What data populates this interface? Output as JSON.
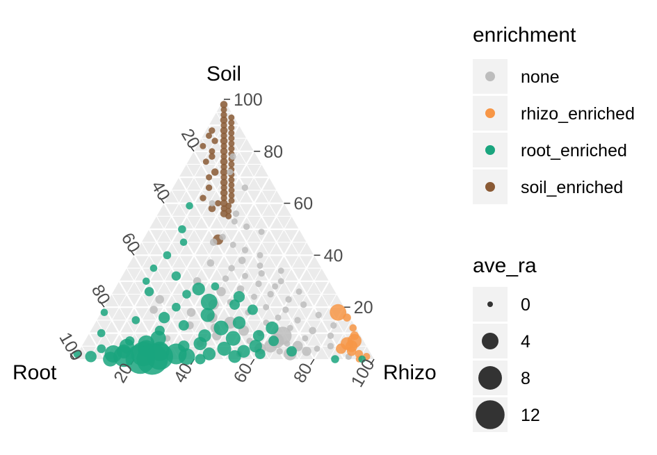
{
  "chart_data": {
    "type": "scatter",
    "subtype": "ternary",
    "axes": {
      "top": "Soil",
      "left": "Root",
      "right": "Rhizo"
    },
    "ticks": [
      "20",
      "40",
      "60",
      "80",
      "100"
    ],
    "right_ticks": [
      "20",
      "40",
      "60",
      "80",
      "100"
    ],
    "grid": true,
    "legend_position": "right",
    "legends": {
      "color": {
        "title": "enrichment",
        "entries": [
          {
            "label": "none",
            "color": "#bdbdbd"
          },
          {
            "label": "rhizo_enriched",
            "color": "#f79646"
          },
          {
            "label": "root_enriched",
            "color": "#1aa57e"
          },
          {
            "label": "soil_enriched",
            "color": "#8a5a35"
          }
        ]
      },
      "size": {
        "title": "ave_ra",
        "entries": [
          {
            "label": "0",
            "value": 0
          },
          {
            "label": "4",
            "value": 4
          },
          {
            "label": "8",
            "value": 8
          },
          {
            "label": "12",
            "value": 12
          }
        ]
      }
    },
    "series": [
      {
        "group": "soil_enriched",
        "color": "#8a5a35",
        "points": [
          [
            98,
            1,
            1,
            0.5
          ],
          [
            96,
            2,
            2,
            0.3
          ],
          [
            94,
            3,
            3,
            0.4
          ],
          [
            93,
            1,
            6,
            0.3
          ],
          [
            92,
            4,
            4,
            0.5
          ],
          [
            91,
            2,
            7,
            0.3
          ],
          [
            90,
            5,
            5,
            0.4
          ],
          [
            89,
            3,
            8,
            0.3
          ],
          [
            88,
            6,
            6,
            0.5
          ],
          [
            87,
            4,
            9,
            0.3
          ],
          [
            86,
            7,
            7,
            0.4
          ],
          [
            85,
            5,
            10,
            0.3
          ],
          [
            84,
            8,
            8,
            0.5
          ],
          [
            83,
            6,
            11,
            0.3
          ],
          [
            82,
            9,
            9,
            0.4
          ],
          [
            81,
            7,
            12,
            0.3
          ],
          [
            80,
            10,
            10,
            0.5
          ],
          [
            79,
            8,
            13,
            0.3
          ],
          [
            78,
            11,
            11,
            0.4
          ],
          [
            77,
            9,
            14,
            0.3
          ],
          [
            76,
            12,
            12,
            0.5
          ],
          [
            75,
            10,
            15,
            0.3
          ],
          [
            74,
            13,
            13,
            0.4
          ],
          [
            73,
            11,
            16,
            0.3
          ],
          [
            72,
            14,
            14,
            0.5
          ],
          [
            71,
            12,
            17,
            0.3
          ],
          [
            70,
            15,
            15,
            0.4
          ],
          [
            69,
            13,
            18,
            0.3
          ],
          [
            68,
            16,
            16,
            0.5
          ],
          [
            67,
            14,
            19,
            0.3
          ],
          [
            66,
            17,
            17,
            0.4
          ],
          [
            65,
            15,
            20,
            0.3
          ],
          [
            64,
            18,
            18,
            0.5
          ],
          [
            63,
            16,
            21,
            0.3
          ],
          [
            62,
            19,
            19,
            0.4
          ],
          [
            61,
            17,
            22,
            0.3
          ],
          [
            60,
            20,
            20,
            0.5
          ],
          [
            59,
            19,
            22,
            0.3
          ],
          [
            58,
            21,
            21,
            0.4
          ],
          [
            57,
            20,
            23,
            0.3
          ],
          [
            56,
            22,
            22,
            0.5
          ],
          [
            55,
            21,
            24,
            0.3
          ],
          [
            88,
            10,
            2,
            0.4
          ],
          [
            86,
            12,
            2,
            0.3
          ],
          [
            84,
            11,
            5,
            0.4
          ],
          [
            80,
            14,
            6,
            0.3
          ],
          [
            78,
            15,
            7,
            0.4
          ],
          [
            76,
            18,
            6,
            0.3
          ],
          [
            72,
            17,
            11,
            0.5
          ],
          [
            70,
            20,
            10,
            0.3
          ],
          [
            62,
            26,
            12,
            0.4
          ],
          [
            60,
            22,
            18,
            0.3
          ],
          [
            58,
            25,
            17,
            0.5
          ],
          [
            46,
            29,
            25,
            1.0
          ],
          [
            82,
            16,
            2,
            0.3
          ],
          [
            66,
            22,
            12,
            0.4
          ]
        ]
      },
      {
        "group": "none",
        "color": "#bdbdbd",
        "points": [
          [
            78,
            8,
            14,
            0.4
          ],
          [
            72,
            12,
            16,
            0.3
          ],
          [
            66,
            10,
            24,
            0.4
          ],
          [
            60,
            24,
            16,
            0.3
          ],
          [
            56,
            18,
            26,
            0.4
          ],
          [
            53,
            20,
            27,
            0.3
          ],
          [
            51,
            17,
            32,
            0.4
          ],
          [
            49,
            13,
            38,
            0.3
          ],
          [
            47,
            27,
            26,
            0.4
          ],
          [
            45,
            31,
            24,
            0.5
          ],
          [
            44,
            25,
            31,
            0.3
          ],
          [
            42,
            22,
            36,
            0.4
          ],
          [
            40,
            18,
            42,
            0.3
          ],
          [
            38,
            25,
            37,
            0.5
          ],
          [
            36,
            20,
            44,
            0.3
          ],
          [
            35,
            30,
            35,
            0.4
          ],
          [
            34,
            14,
            52,
            0.3
          ],
          [
            33,
            21,
            46,
            0.4
          ],
          [
            32,
            27,
            41,
            0.3
          ],
          [
            31,
            34,
            35,
            0.4
          ],
          [
            30,
            16,
            54,
            0.3
          ],
          [
            29,
            24,
            47,
            0.4
          ],
          [
            28,
            19,
            53,
            0.3
          ],
          [
            27,
            31,
            42,
            0.5
          ],
          [
            26,
            12,
            62,
            0.3
          ],
          [
            25,
            22,
            53,
            0.4
          ],
          [
            24,
            28,
            48,
            0.3
          ],
          [
            23,
            17,
            60,
            0.4
          ],
          [
            22,
            37,
            41,
            0.3
          ],
          [
            21,
            13,
            66,
            0.4
          ],
          [
            20,
            26,
            54,
            0.3
          ],
          [
            19,
            20,
            61,
            0.4
          ],
          [
            18,
            33,
            49,
            0.3
          ],
          [
            17,
            10,
            73,
            0.4
          ],
          [
            16,
            24,
            60,
            0.3
          ],
          [
            15,
            18,
            67,
            0.4
          ],
          [
            14,
            29,
            57,
            0.3
          ],
          [
            13,
            7,
            80,
            0.4
          ],
          [
            12,
            22,
            66,
            0.3
          ],
          [
            11,
            15,
            74,
            0.5
          ],
          [
            10,
            33,
            57,
            0.3
          ],
          [
            9,
            10,
            81,
            0.4
          ],
          [
            8,
            19,
            73,
            0.3
          ],
          [
            7,
            38,
            55,
            0.4
          ],
          [
            6,
            26,
            68,
            0.3
          ],
          [
            5,
            12,
            83,
            0.4
          ],
          [
            4,
            17,
            79,
            0.3
          ],
          [
            3,
            30,
            67,
            0.4
          ],
          [
            2,
            44,
            54,
            0.3
          ],
          [
            1,
            8,
            91,
            0.4
          ],
          [
            9,
            26,
            65,
            3.0
          ],
          [
            7,
            29,
            64,
            2.0
          ],
          [
            5,
            32,
            63,
            1.5
          ],
          [
            5,
            23,
            72,
            1.0
          ],
          [
            4,
            36,
            60,
            1.2
          ],
          [
            3,
            21,
            76,
            0.8
          ],
          [
            2,
            27,
            71,
            1.5
          ],
          [
            11,
            38,
            51,
            1.0
          ],
          [
            12,
            47,
            41,
            0.8
          ],
          [
            14,
            41,
            45,
            1.3
          ],
          [
            16,
            46,
            38,
            1.0
          ],
          [
            18,
            52,
            30,
            0.7
          ],
          [
            21,
            43,
            36,
            1.0
          ],
          [
            13,
            55,
            32,
            0.6
          ],
          [
            9,
            48,
            43,
            0.8
          ],
          [
            23,
            60,
            17,
            0.7
          ],
          [
            19,
            64,
            17,
            0.6
          ],
          [
            26,
            38,
            36,
            0.8
          ],
          [
            6,
            55,
            39,
            0.5
          ],
          [
            3,
            72,
            25,
            0.6
          ],
          [
            8,
            65,
            27,
            0.4
          ],
          [
            30,
            44,
            26,
            0.6
          ],
          [
            37,
            36,
            27,
            0.5
          ]
        ]
      },
      {
        "group": "rhizo_enriched",
        "color": "#f79646",
        "points": [
          [
            18,
            3,
            79,
            2.5
          ],
          [
            16,
            1,
            83,
            0.6
          ],
          [
            12,
            1,
            87,
            0.5
          ],
          [
            7,
            3,
            90,
            1.8
          ],
          [
            6,
            6,
            88,
            1.5
          ],
          [
            5,
            5,
            90,
            1.3
          ],
          [
            4,
            9,
            87,
            1.0
          ],
          [
            3,
            6,
            91,
            0.8
          ],
          [
            2,
            4,
            94,
            0.6
          ],
          [
            1,
            2,
            97,
            0.5
          ],
          [
            0,
            5,
            95,
            0.4
          ],
          [
            9,
            2,
            89,
            0.7
          ]
        ]
      },
      {
        "group": "root_enriched",
        "color": "#1aa57e",
        "points": [
          [
            59,
            32,
            9,
            0.5
          ],
          [
            50,
            39,
            11,
            0.6
          ],
          [
            45,
            41,
            14,
            0.5
          ],
          [
            40,
            49,
            11,
            0.6
          ],
          [
            35,
            56,
            9,
            0.5
          ],
          [
            32,
            50,
            18,
            0.8
          ],
          [
            30,
            61,
            9,
            0.5
          ],
          [
            28,
            39,
            33,
            0.6
          ],
          [
            27,
            45,
            28,
            1.5
          ],
          [
            26,
            62,
            12,
            0.8
          ],
          [
            25,
            50,
            25,
            0.7
          ],
          [
            24,
            33,
            43,
            1.2
          ],
          [
            22,
            44,
            34,
            2.5
          ],
          [
            21,
            36,
            43,
            1.0
          ],
          [
            20,
            56,
            24,
            0.7
          ],
          [
            19,
            31,
            50,
            1.0
          ],
          [
            18,
            81,
            1,
            0.5
          ],
          [
            17,
            47,
            36,
            1.8
          ],
          [
            16,
            62,
            22,
            1.2
          ],
          [
            15,
            72,
            13,
            0.6
          ],
          [
            14,
            38,
            48,
            1.5
          ],
          [
            13,
            57,
            30,
            1.0
          ],
          [
            12,
            45,
            43,
            2.0
          ],
          [
            12,
            28,
            60,
            1.5
          ],
          [
            11,
            66,
            23,
            0.9
          ],
          [
            10,
            86,
            4,
            0.6
          ],
          [
            9,
            34,
            57,
            1.2
          ],
          [
            9,
            52,
            39,
            1.5
          ],
          [
            8,
            68,
            24,
            2.2
          ],
          [
            8,
            43,
            49,
            2.0
          ],
          [
            7,
            78,
            15,
            0.8
          ],
          [
            7,
            30,
            63,
            1.0
          ],
          [
            6,
            73,
            21,
            2.5
          ],
          [
            6,
            55,
            39,
            1.6
          ],
          [
            5,
            80,
            15,
            2.0
          ],
          [
            5,
            37,
            58,
            1.5
          ],
          [
            5,
            61,
            34,
            1.2
          ],
          [
            4,
            74,
            22,
            2.8
          ],
          [
            4,
            89,
            7,
            0.7
          ],
          [
            4,
            48,
            48,
            1.8
          ],
          [
            3,
            70,
            27,
            3.5
          ],
          [
            3,
            82,
            15,
            1.8
          ],
          [
            3,
            42,
            55,
            1.5
          ],
          [
            3,
            26,
            71,
            1.0
          ],
          [
            2,
            86,
            12,
            2.8
          ],
          [
            2,
            76,
            22,
            5.5
          ],
          [
            2,
            65,
            33,
            4.0
          ],
          [
            2,
            98,
            0,
            0.6
          ],
          [
            2,
            54,
            44,
            1.5
          ],
          [
            2,
            37,
            61,
            1.0
          ],
          [
            1,
            83,
            16,
            4.0
          ],
          [
            1,
            71,
            28,
            6.5
          ],
          [
            1,
            94,
            5,
            1.2
          ],
          [
            1,
            62,
            37,
            2.5
          ],
          [
            1,
            46,
            53,
            1.5
          ],
          [
            0,
            78,
            22,
            8.0
          ],
          [
            0,
            74,
            26,
            9.0
          ],
          [
            0,
            88,
            12,
            2.0
          ],
          [
            0,
            58,
            42,
            1.0
          ],
          [
            0,
            13,
            87,
            0.6
          ],
          [
            0,
            4,
            96,
            0.5
          ]
        ]
      }
    ]
  }
}
